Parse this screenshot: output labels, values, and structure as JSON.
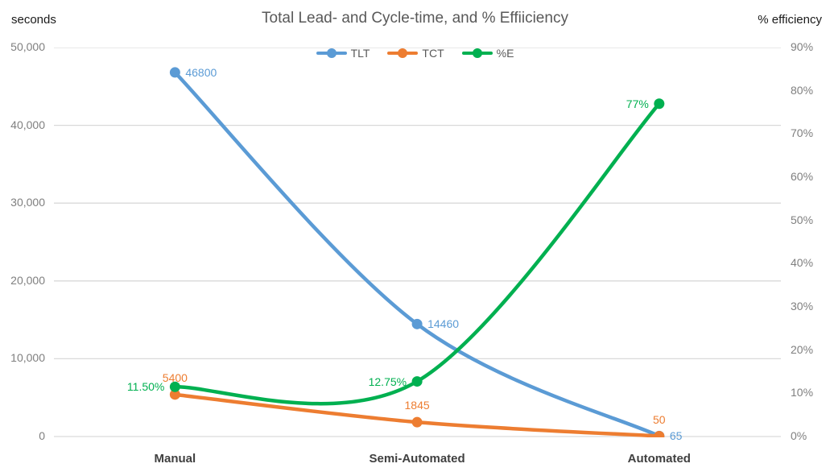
{
  "header": {
    "left_units": "seconds",
    "right_units": "% efficiency"
  },
  "chart_data": {
    "type": "line",
    "title": "Total Lead- and Cycle-time, and % Effiiciency",
    "xlabel": "",
    "ylabel_left": "seconds",
    "ylabel_right": "% efficiency",
    "grid": true,
    "smooth_lines": true,
    "legend_position": "top-center",
    "categories": [
      "Manual",
      "Semi-Automated",
      "Automated"
    ],
    "left_axis": {
      "min": 0,
      "max": 50000,
      "tick_labels": [
        "0",
        "10,000",
        "20,000",
        "30,000",
        "40,000",
        "50,000"
      ]
    },
    "right_axis": {
      "min": 0,
      "max": 90,
      "tick_labels": [
        "0%",
        "10%",
        "20%",
        "30%",
        "40%",
        "50%",
        "60%",
        "70%",
        "80%",
        "90%"
      ]
    },
    "series": [
      {
        "name": "TLT",
        "axis": "left",
        "color": "#5B9BD5",
        "values": [
          46800,
          14460,
          65
        ],
        "data_labels": [
          "46800",
          "14460",
          "65"
        ],
        "label_side": "right"
      },
      {
        "name": "TCT",
        "axis": "left",
        "color": "#ED7D31",
        "values": [
          5400,
          1845,
          50
        ],
        "data_labels": [
          "5400",
          "1845",
          "50"
        ],
        "label_side": "above"
      },
      {
        "name": "%E",
        "axis": "right",
        "color": "#00B050",
        "values": [
          11.5,
          12.75,
          77
        ],
        "data_labels": [
          "11.50%",
          "12.75%",
          "77%"
        ],
        "label_side": "left"
      }
    ],
    "colors": {
      "gridline": "#D9D9D9",
      "title_text": "#595959",
      "tick_text": "#7F7F7F",
      "category_text": "#404040"
    }
  }
}
